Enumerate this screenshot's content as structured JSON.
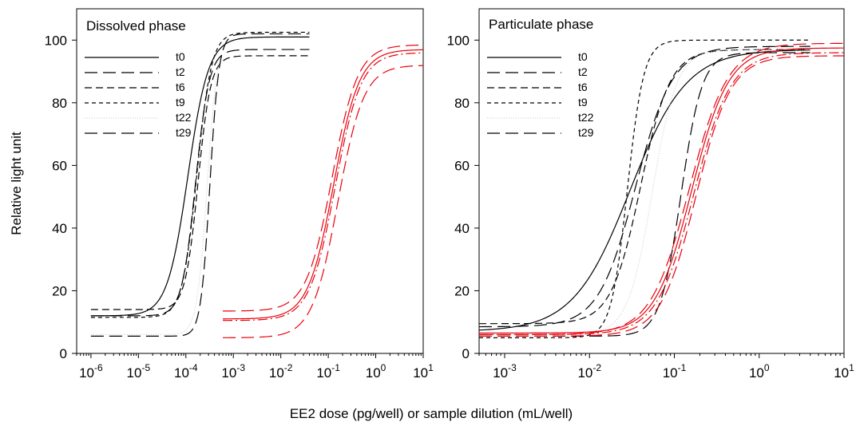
{
  "figure": {
    "ylabel": "Relative light unit",
    "xlabel": "EE2 dose (pg/well) or sample dilution (mL/well)"
  },
  "legend_labels": [
    "t0",
    "t2",
    "t6",
    "t9",
    "t22",
    "t29"
  ],
  "chart_data": [
    {
      "type": "line",
      "panel": "left",
      "title": "Dissolved phase",
      "xscale": "log",
      "xlim": [
        5e-07,
        10
      ],
      "ylim": [
        0,
        110
      ],
      "xticks": [
        {
          "value": 1e-06,
          "base": "10",
          "exp": "-6"
        },
        {
          "value": 1e-05,
          "base": "10",
          "exp": "-5"
        },
        {
          "value": 0.0001,
          "base": "10",
          "exp": "-4"
        },
        {
          "value": 0.001,
          "base": "10",
          "exp": "-3"
        },
        {
          "value": 0.01,
          "base": "10",
          "exp": "-2"
        },
        {
          "value": 0.1,
          "base": "10",
          "exp": "-1"
        },
        {
          "value": 1,
          "base": "10",
          "exp": "0"
        },
        {
          "value": 10,
          "base": "10",
          "exp": "1"
        }
      ],
      "yticks": [
        0,
        20,
        40,
        60,
        80,
        100
      ],
      "legend_position": "top-left",
      "series": [
        {
          "name": "t0",
          "color": "#000000",
          "style": "solid",
          "x_range": [
            1e-06,
            0.04
          ],
          "bottom": 12,
          "top": 101,
          "ec50": 0.00011,
          "hill": 2.0
        },
        {
          "name": "t2",
          "color": "#000000",
          "style": "long-dash",
          "x_range": [
            1e-06,
            0.04
          ],
          "bottom": 12,
          "top": 97,
          "ec50": 0.00016,
          "hill": 3.0
        },
        {
          "name": "t6",
          "color": "#000000",
          "style": "medium-dash",
          "x_range": [
            1e-06,
            0.04
          ],
          "bottom": 14,
          "top": 95,
          "ec50": 0.00018,
          "hill": 3.2
        },
        {
          "name": "t9",
          "color": "#000000",
          "style": "short-dash",
          "x_range": [
            1e-06,
            0.04
          ],
          "bottom": 11.5,
          "top": 102.5,
          "ec50": 0.00017,
          "hill": 2.8
        },
        {
          "name": "t22",
          "color": "#000000",
          "style": "dotted",
          "x_range": [
            1e-06,
            0.0005
          ],
          "bottom": 6,
          "top": 101,
          "ec50": 0.00028,
          "hill": 4.0
        },
        {
          "name": "t29",
          "color": "#000000",
          "style": "long-dash",
          "x_range": [
            1e-06,
            0.04
          ],
          "bottom": 5.5,
          "top": 102,
          "ec50": 0.00032,
          "hill": 4.5
        },
        {
          "name": "",
          "color": "#e8000b",
          "style": "long-dash",
          "x_range": [
            0.0006,
            10
          ],
          "bottom": 13.5,
          "top": 98.5,
          "ec50": 0.12,
          "hill": 1.6
        },
        {
          "name": "",
          "color": "#e8000b",
          "style": "solid",
          "x_range": [
            0.0006,
            10
          ],
          "bottom": 11,
          "top": 97,
          "ec50": 0.13,
          "hill": 1.6
        },
        {
          "name": "",
          "color": "#e8000b",
          "style": "dash-dot",
          "x_range": [
            0.0006,
            10
          ],
          "bottom": 10.5,
          "top": 96,
          "ec50": 0.14,
          "hill": 1.6
        },
        {
          "name": "",
          "color": "#e8000b",
          "style": "long-dash",
          "x_range": [
            0.0006,
            10
          ],
          "bottom": 5,
          "top": 92,
          "ec50": 0.16,
          "hill": 1.6
        }
      ]
    },
    {
      "type": "line",
      "panel": "right",
      "title": "Particulate phase",
      "xscale": "log",
      "xlim": [
        0.0005,
        10
      ],
      "ylim": [
        0,
        110
      ],
      "xticks": [
        {
          "value": 0.001,
          "base": "10",
          "exp": "-3"
        },
        {
          "value": 0.01,
          "base": "10",
          "exp": "-2"
        },
        {
          "value": 0.1,
          "base": "10",
          "exp": "-1"
        },
        {
          "value": 1,
          "base": "10",
          "exp": "0"
        },
        {
          "value": 10,
          "base": "10",
          "exp": "1"
        }
      ],
      "yticks": [
        0,
        20,
        40,
        60,
        80,
        100
      ],
      "legend_position": "top-left",
      "series": [
        {
          "name": "t0",
          "color": "#000000",
          "style": "solid",
          "x_range": [
            0.0005,
            4
          ],
          "bottom": 7,
          "top": 97,
          "ec50": 0.03,
          "hill": 1.3
        },
        {
          "name": "t2",
          "color": "#000000",
          "style": "long-dash",
          "x_range": [
            0.0005,
            4
          ],
          "bottom": 8.5,
          "top": 98,
          "ec50": 0.035,
          "hill": 2.0
        },
        {
          "name": "t6",
          "color": "#000000",
          "style": "medium-dash",
          "x_range": [
            0.0005,
            4
          ],
          "bottom": 9.5,
          "top": 97,
          "ec50": 0.04,
          "hill": 2.5
        },
        {
          "name": "t9",
          "color": "#000000",
          "style": "short-dash",
          "x_range": [
            0.0005,
            4
          ],
          "bottom": 5,
          "top": 100,
          "ec50": 0.028,
          "hill": 4.5
        },
        {
          "name": "t22",
          "color": "#000000",
          "style": "dotted",
          "x_range": [
            0.0005,
            4
          ],
          "bottom": 6,
          "top": 97,
          "ec50": 0.055,
          "hill": 3.0
        },
        {
          "name": "t29",
          "color": "#000000",
          "style": "long-dash",
          "x_range": [
            0.0005,
            4
          ],
          "bottom": 5.5,
          "top": 96,
          "ec50": 0.12,
          "hill": 3.5
        },
        {
          "name": "",
          "color": "#e8000b",
          "style": "long-dash",
          "x_range": [
            0.0005,
            10
          ],
          "bottom": 6,
          "top": 99,
          "ec50": 0.15,
          "hill": 1.9
        },
        {
          "name": "",
          "color": "#e8000b",
          "style": "solid",
          "x_range": [
            0.0005,
            10
          ],
          "bottom": 6.5,
          "top": 97.5,
          "ec50": 0.16,
          "hill": 2.0
        },
        {
          "name": "",
          "color": "#e8000b",
          "style": "dash-dot",
          "x_range": [
            0.0005,
            10
          ],
          "bottom": 6,
          "top": 96,
          "ec50": 0.17,
          "hill": 2.0
        },
        {
          "name": "",
          "color": "#e8000b",
          "style": "long-dash",
          "x_range": [
            0.0005,
            10
          ],
          "bottom": 5.5,
          "top": 95,
          "ec50": 0.18,
          "hill": 2.1
        }
      ]
    }
  ]
}
